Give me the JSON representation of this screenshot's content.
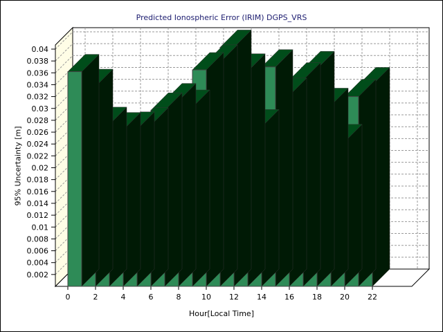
{
  "chart_data": {
    "type": "bar",
    "title": "Predicted Ionospheric Error (IRIM) DGPS_VRS",
    "xlabel": "Hour[Local Time]",
    "ylabel": "95% Uncertainty [m]",
    "categories": [
      0,
      1,
      2,
      3,
      4,
      5,
      6,
      7,
      8,
      9,
      10,
      11,
      12,
      13,
      14,
      15,
      16,
      17,
      18,
      19,
      20,
      21
    ],
    "x_tick_labels": [
      "0",
      "2",
      "4",
      "6",
      "8",
      "10",
      "12",
      "14",
      "16",
      "18",
      "20",
      "22"
    ],
    "y_tick_labels": [
      "0.002",
      "0.004",
      "0.006",
      "0.008",
      "0.01",
      "0.012",
      "0.014",
      "0.016",
      "0.018",
      "0.02",
      "0.022",
      "0.024",
      "0.026",
      "0.028",
      "0.03",
      "0.032",
      "0.034",
      "0.036",
      "0.038",
      "0.04"
    ],
    "values": [
      0.0362,
      0.0337,
      0.0273,
      0.0264,
      0.0265,
      0.0272,
      0.0297,
      0.0313,
      0.0302,
      0.0365,
      0.0378,
      0.0403,
      0.0363,
      0.0269,
      0.037,
      0.0322,
      0.0348,
      0.0367,
      0.0305,
      0.0244,
      0.032,
      0.034
    ],
    "ylim": [
      0,
      0.04
    ],
    "grid": true,
    "colors": {
      "front": "#2e8b57",
      "top": "#004d1a",
      "side": "#001a05",
      "wall": "#fffde6"
    }
  }
}
